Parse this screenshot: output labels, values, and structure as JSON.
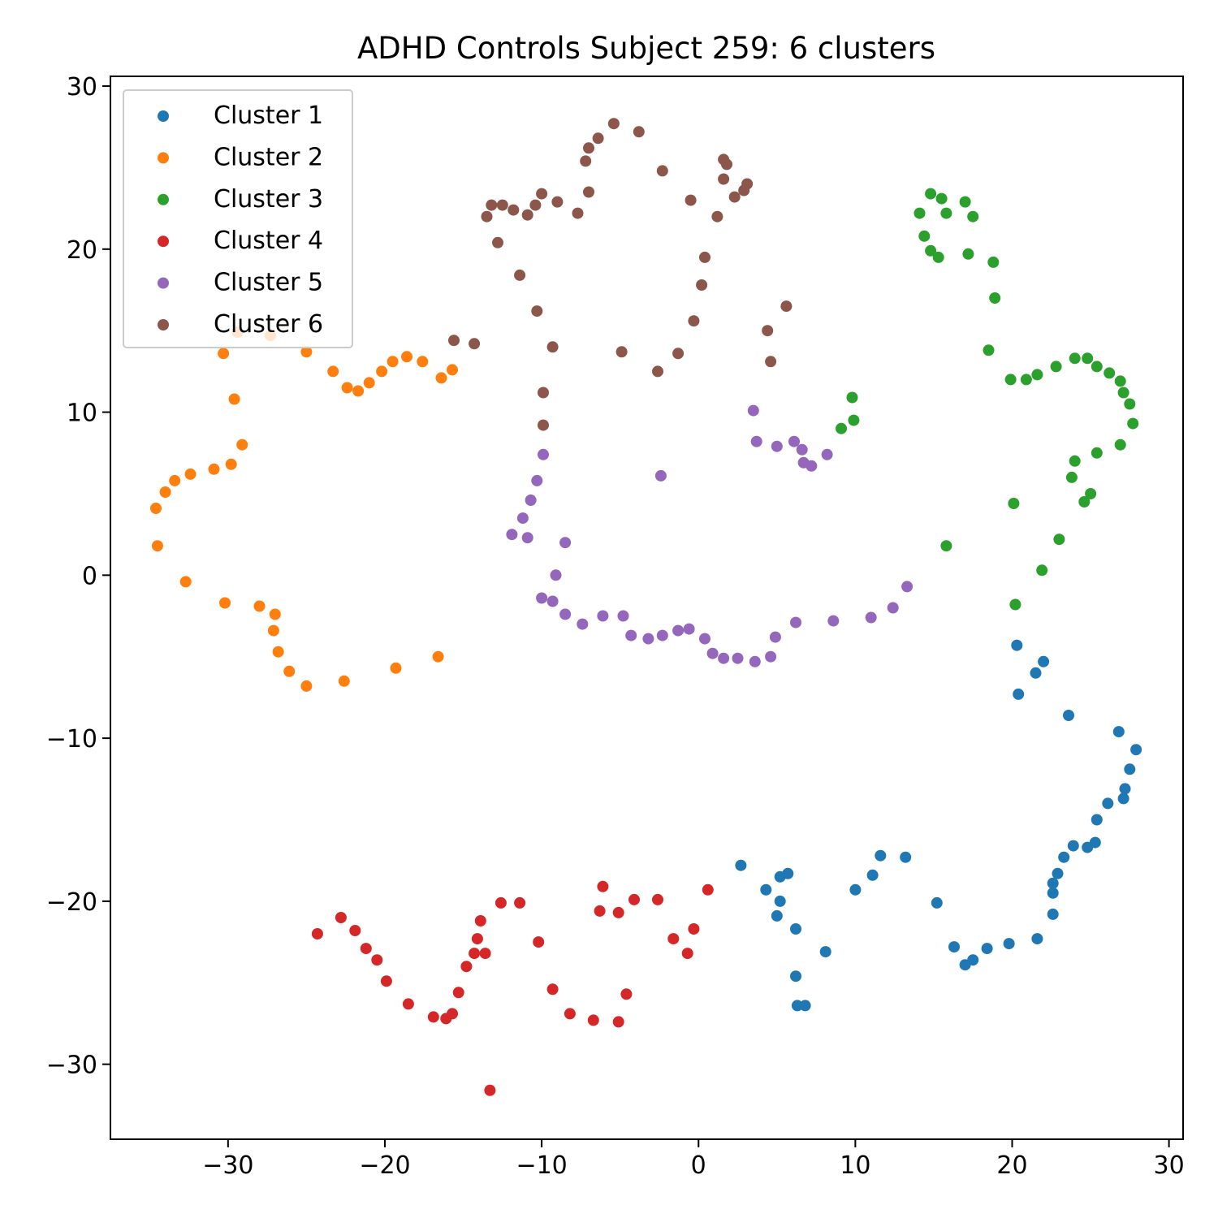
{
  "chart_data": {
    "type": "scatter",
    "title": "ADHD Controls Subject 259: 6 clusters",
    "xlabel": "",
    "ylabel": "",
    "xlim": [
      -37.5,
      30.9
    ],
    "ylim": [
      -34.6,
      30.6
    ],
    "x_ticks": [
      -30,
      -20,
      -10,
      0,
      10,
      20,
      30
    ],
    "y_ticks": [
      -30,
      -20,
      -10,
      0,
      10,
      20,
      30
    ],
    "x_tick_labels": [
      "−30",
      "−20",
      "−10",
      "0",
      "10",
      "20",
      "30"
    ],
    "y_tick_labels": [
      "−30",
      "−20",
      "−10",
      "0",
      "10",
      "20",
      "30"
    ],
    "grid": false,
    "legend_position": "top-left",
    "series": [
      {
        "name": "Cluster 1",
        "color": "#1f77b4",
        "points": [
          [
            20.3,
            -4.3
          ],
          [
            22.0,
            -5.3
          ],
          [
            21.5,
            -6.0
          ],
          [
            20.4,
            -7.3
          ],
          [
            23.6,
            -8.6
          ],
          [
            26.8,
            -9.6
          ],
          [
            27.9,
            -10.7
          ],
          [
            27.5,
            -11.9
          ],
          [
            27.2,
            -13.1
          ],
          [
            27.1,
            -13.7
          ],
          [
            26.1,
            -14.0
          ],
          [
            25.4,
            -15.0
          ],
          [
            25.3,
            -16.4
          ],
          [
            24.8,
            -16.7
          ],
          [
            23.9,
            -16.6
          ],
          [
            23.3,
            -17.3
          ],
          [
            22.9,
            -18.3
          ],
          [
            22.6,
            -18.9
          ],
          [
            22.6,
            -19.5
          ],
          [
            22.6,
            -20.8
          ],
          [
            21.6,
            -22.3
          ],
          [
            19.8,
            -22.6
          ],
          [
            18.4,
            -22.9
          ],
          [
            17.5,
            -23.6
          ],
          [
            17.0,
            -23.9
          ],
          [
            16.3,
            -22.8
          ],
          [
            15.2,
            -20.1
          ],
          [
            13.2,
            -17.3
          ],
          [
            11.6,
            -17.2
          ],
          [
            11.1,
            -18.4
          ],
          [
            10.0,
            -19.3
          ],
          [
            8.1,
            -23.1
          ],
          [
            6.8,
            -26.4
          ],
          [
            6.3,
            -26.4
          ],
          [
            6.2,
            -24.6
          ],
          [
            6.2,
            -21.7
          ],
          [
            5.7,
            -18.3
          ],
          [
            5.2,
            -18.5
          ],
          [
            5.2,
            -20.0
          ],
          [
            5.0,
            -20.9
          ],
          [
            4.3,
            -19.3
          ],
          [
            2.7,
            -17.8
          ]
        ]
      },
      {
        "name": "Cluster 2",
        "color": "#ff7f0e",
        "points": [
          [
            -29.4,
            14.9
          ],
          [
            -27.3,
            14.7
          ],
          [
            -30.3,
            13.6
          ],
          [
            -25.0,
            13.7
          ],
          [
            -23.3,
            12.5
          ],
          [
            -22.4,
            11.5
          ],
          [
            -21.7,
            11.3
          ],
          [
            -21.0,
            11.8
          ],
          [
            -20.2,
            12.5
          ],
          [
            -19.5,
            13.1
          ],
          [
            -18.6,
            13.4
          ],
          [
            -17.6,
            13.1
          ],
          [
            -16.4,
            12.1
          ],
          [
            -15.7,
            12.6
          ],
          [
            -29.6,
            10.8
          ],
          [
            -29.1,
            8.0
          ],
          [
            -29.8,
            6.8
          ],
          [
            -30.9,
            6.5
          ],
          [
            -32.4,
            6.2
          ],
          [
            -33.4,
            5.8
          ],
          [
            -34.0,
            5.1
          ],
          [
            -34.6,
            4.1
          ],
          [
            -34.5,
            1.8
          ],
          [
            -32.7,
            -0.4
          ],
          [
            -30.2,
            -1.7
          ],
          [
            -28.0,
            -1.9
          ],
          [
            -27.0,
            -2.4
          ],
          [
            -27.1,
            -3.4
          ],
          [
            -26.8,
            -4.7
          ],
          [
            -26.1,
            -5.9
          ],
          [
            -25.0,
            -6.8
          ],
          [
            -22.6,
            -6.5
          ],
          [
            -19.3,
            -5.7
          ],
          [
            -16.6,
            -5.0
          ]
        ]
      },
      {
        "name": "Cluster 3",
        "color": "#2ca02c",
        "points": [
          [
            14.8,
            23.4
          ],
          [
            15.5,
            23.1
          ],
          [
            17.0,
            22.9
          ],
          [
            14.1,
            22.2
          ],
          [
            15.8,
            22.2
          ],
          [
            17.5,
            22.0
          ],
          [
            14.4,
            20.8
          ],
          [
            14.8,
            19.9
          ],
          [
            15.3,
            19.5
          ],
          [
            17.2,
            19.7
          ],
          [
            18.8,
            19.2
          ],
          [
            18.9,
            17.0
          ],
          [
            18.5,
            13.8
          ],
          [
            24.0,
            13.3
          ],
          [
            24.8,
            13.3
          ],
          [
            25.4,
            12.8
          ],
          [
            26.2,
            12.4
          ],
          [
            22.8,
            12.8
          ],
          [
            21.6,
            12.3
          ],
          [
            20.9,
            12.0
          ],
          [
            19.9,
            12.0
          ],
          [
            26.9,
            11.9
          ],
          [
            27.1,
            11.2
          ],
          [
            27.5,
            10.5
          ],
          [
            27.7,
            9.3
          ],
          [
            26.9,
            8.0
          ],
          [
            25.4,
            7.5
          ],
          [
            24.0,
            7.0
          ],
          [
            23.8,
            6.0
          ],
          [
            25.0,
            5.0
          ],
          [
            24.6,
            4.5
          ],
          [
            20.1,
            4.4
          ],
          [
            9.8,
            10.9
          ],
          [
            9.9,
            9.5
          ],
          [
            9.1,
            9.0
          ],
          [
            15.8,
            1.8
          ],
          [
            23.0,
            2.2
          ],
          [
            21.9,
            0.3
          ],
          [
            20.2,
            -1.8
          ]
        ]
      },
      {
        "name": "Cluster 4",
        "color": "#d62728",
        "points": [
          [
            -6.1,
            -19.1
          ],
          [
            0.6,
            -19.3
          ],
          [
            -2.6,
            -19.9
          ],
          [
            -4.1,
            -19.9
          ],
          [
            -12.6,
            -20.1
          ],
          [
            -11.4,
            -20.1
          ],
          [
            -6.3,
            -20.6
          ],
          [
            -5.1,
            -20.7
          ],
          [
            -22.8,
            -21.0
          ],
          [
            -13.9,
            -21.2
          ],
          [
            -0.3,
            -21.7
          ],
          [
            -21.9,
            -21.8
          ],
          [
            -24.3,
            -22.0
          ],
          [
            -14.1,
            -22.3
          ],
          [
            -1.6,
            -22.3
          ],
          [
            -10.2,
            -22.5
          ],
          [
            -21.2,
            -22.9
          ],
          [
            -14.3,
            -23.2
          ],
          [
            -13.6,
            -23.2
          ],
          [
            -0.7,
            -23.2
          ],
          [
            -20.5,
            -23.6
          ],
          [
            -14.8,
            -24.0
          ],
          [
            -19.9,
            -24.9
          ],
          [
            -15.3,
            -25.6
          ],
          [
            -9.3,
            -25.4
          ],
          [
            -4.6,
            -25.7
          ],
          [
            -18.5,
            -26.3
          ],
          [
            -8.2,
            -26.9
          ],
          [
            -16.9,
            -27.1
          ],
          [
            -15.7,
            -26.9
          ],
          [
            -16.1,
            -27.2
          ],
          [
            -6.7,
            -27.3
          ],
          [
            -5.1,
            -27.4
          ],
          [
            -13.3,
            -31.6
          ]
        ]
      },
      {
        "name": "Cluster 5",
        "color": "#9467bd",
        "points": [
          [
            3.5,
            10.1
          ],
          [
            3.7,
            8.2
          ],
          [
            5.0,
            7.9
          ],
          [
            6.1,
            8.2
          ],
          [
            6.6,
            7.7
          ],
          [
            6.7,
            6.9
          ],
          [
            7.2,
            6.7
          ],
          [
            8.2,
            7.4
          ],
          [
            -2.4,
            6.1
          ],
          [
            -9.9,
            7.4
          ],
          [
            -10.3,
            5.8
          ],
          [
            -10.7,
            4.6
          ],
          [
            -11.2,
            3.5
          ],
          [
            -11.9,
            2.5
          ],
          [
            -10.9,
            2.3
          ],
          [
            -8.5,
            2.0
          ],
          [
            -9.1,
            -0.0
          ],
          [
            -10.0,
            -1.4
          ],
          [
            -9.3,
            -1.6
          ],
          [
            -8.5,
            -2.4
          ],
          [
            -7.4,
            -3.0
          ],
          [
            -6.1,
            -2.5
          ],
          [
            -4.8,
            -2.5
          ],
          [
            -4.3,
            -3.7
          ],
          [
            -3.2,
            -3.9
          ],
          [
            -2.3,
            -3.7
          ],
          [
            -1.3,
            -3.4
          ],
          [
            -0.6,
            -3.3
          ],
          [
            0.4,
            -3.9
          ],
          [
            0.9,
            -4.8
          ],
          [
            1.6,
            -5.1
          ],
          [
            2.5,
            -5.1
          ],
          [
            3.6,
            -5.3
          ],
          [
            4.6,
            -5.0
          ],
          [
            4.9,
            -3.8
          ],
          [
            6.2,
            -2.9
          ],
          [
            8.6,
            -2.8
          ],
          [
            11.0,
            -2.6
          ],
          [
            12.4,
            -2.0
          ],
          [
            13.3,
            -0.7
          ]
        ]
      },
      {
        "name": "Cluster 6",
        "color": "#8c564b",
        "points": [
          [
            -5.4,
            27.7
          ],
          [
            -3.8,
            27.2
          ],
          [
            -6.4,
            26.8
          ],
          [
            -7.0,
            26.2
          ],
          [
            -7.2,
            25.4
          ],
          [
            1.6,
            25.5
          ],
          [
            1.8,
            25.2
          ],
          [
            -2.3,
            24.8
          ],
          [
            1.6,
            24.3
          ],
          [
            3.1,
            24.0
          ],
          [
            2.9,
            23.6
          ],
          [
            -7.0,
            23.5
          ],
          [
            -10.0,
            23.4
          ],
          [
            2.3,
            23.2
          ],
          [
            -0.5,
            23.0
          ],
          [
            -9.0,
            22.9
          ],
          [
            -10.4,
            22.7
          ],
          [
            -13.2,
            22.7
          ],
          [
            -12.5,
            22.7
          ],
          [
            -11.8,
            22.4
          ],
          [
            -7.7,
            22.2
          ],
          [
            -10.9,
            22.1
          ],
          [
            -13.5,
            22.0
          ],
          [
            1.2,
            22.0
          ],
          [
            -12.8,
            20.4
          ],
          [
            0.4,
            19.5
          ],
          [
            -11.4,
            18.4
          ],
          [
            0.2,
            17.8
          ],
          [
            5.6,
            16.5
          ],
          [
            -10.3,
            16.2
          ],
          [
            -0.3,
            15.6
          ],
          [
            4.4,
            15.0
          ],
          [
            -15.6,
            14.4
          ],
          [
            -14.3,
            14.2
          ],
          [
            -9.3,
            14.0
          ],
          [
            -4.9,
            13.7
          ],
          [
            -1.3,
            13.6
          ],
          [
            4.6,
            13.1
          ],
          [
            -2.6,
            12.5
          ],
          [
            -9.9,
            11.2
          ],
          [
            -9.9,
            9.2
          ]
        ]
      }
    ]
  }
}
